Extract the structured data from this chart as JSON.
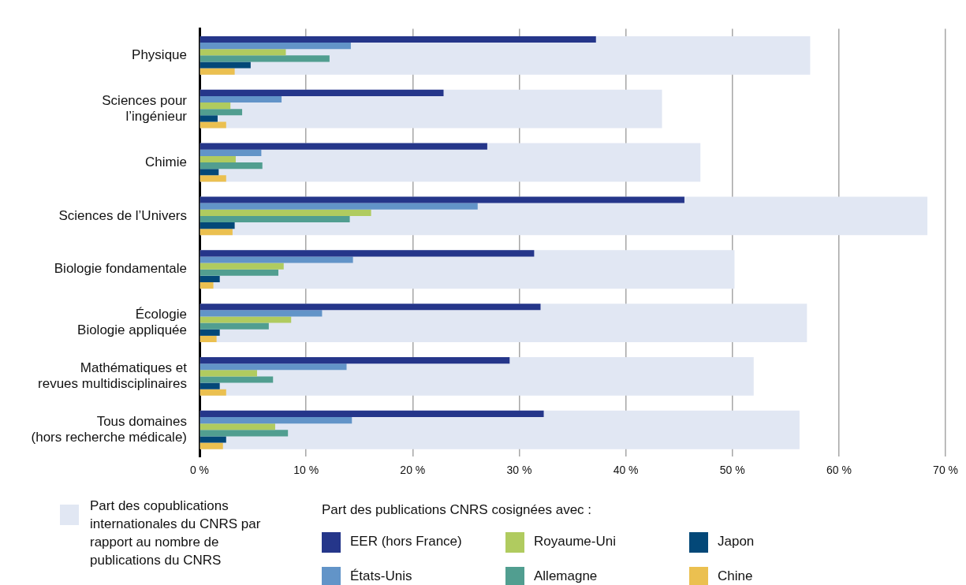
{
  "chart_data": {
    "type": "bar",
    "orientation": "horizontal",
    "categories": [
      "Physique",
      "Sciences pour\nl’ingénieur",
      "Chimie",
      "Sciences de l’Univers",
      "Biologie fondamentale",
      "Écologie\nBiologie appliquée",
      "Mathématiques et\nrevues multidisciplinaires",
      "Tous domaines\n(hors recherche médicale)"
    ],
    "series": [
      {
        "name": "Part des copublications internationales du CNRS par rapport au nombre de publications du CNRS",
        "color": "#e1e7f3",
        "values": [
          57.3,
          43.4,
          47.0,
          68.3,
          50.2,
          57.0,
          52.0,
          56.3
        ]
      },
      {
        "name": "EER (hors France)",
        "color": "#25368a",
        "values": [
          37.2,
          22.9,
          27.0,
          45.5,
          31.4,
          32.0,
          29.1,
          32.3
        ]
      },
      {
        "name": "États-Unis",
        "color": "#6294c8",
        "values": [
          14.2,
          7.7,
          5.8,
          26.1,
          14.4,
          11.5,
          13.8,
          14.3
        ]
      },
      {
        "name": "Royaume-Uni",
        "color": "#b0cb5f",
        "values": [
          8.1,
          2.9,
          3.4,
          16.1,
          7.9,
          8.6,
          5.4,
          7.1
        ]
      },
      {
        "name": "Allemagne",
        "color": "#519e90",
        "values": [
          12.2,
          4.0,
          5.9,
          14.1,
          7.4,
          6.5,
          6.9,
          8.3
        ]
      },
      {
        "name": "Japon",
        "color": "#034878",
        "values": [
          4.8,
          1.7,
          1.8,
          3.3,
          1.9,
          1.9,
          1.9,
          2.5
        ]
      },
      {
        "name": "Chine",
        "color": "#ebc050",
        "values": [
          3.3,
          2.5,
          2.5,
          3.1,
          1.3,
          1.6,
          2.5,
          2.2
        ]
      }
    ],
    "legend_title": "Part des publications CNRS cosignées avec :",
    "xlim": [
      0,
      70
    ],
    "xticks": [
      {
        "value": 0,
        "label": "0 %"
      },
      {
        "value": 10,
        "label": "10 %"
      },
      {
        "value": 20,
        "label": "20 %"
      },
      {
        "value": 30,
        "label": "30 %"
      },
      {
        "value": 40,
        "label": "40 %"
      },
      {
        "value": 50,
        "label": "50 %"
      },
      {
        "value": 60,
        "label": "60 %"
      },
      {
        "value": 70,
        "label": "70 %"
      }
    ],
    "grid": "x",
    "legend": "bottom"
  }
}
